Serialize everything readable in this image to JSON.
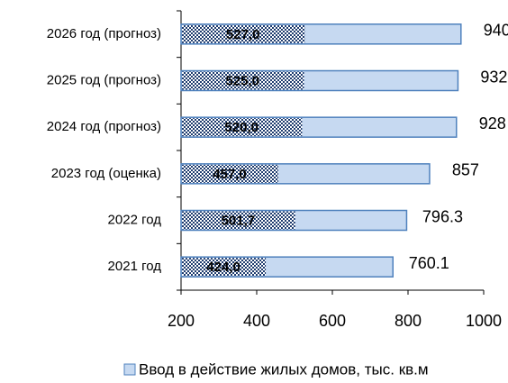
{
  "chart_data": {
    "type": "bar",
    "orientation": "horizontal",
    "categories": [
      "2021 год",
      "2022 год",
      "2023 год (оценка)",
      "2024 год (прогноз)",
      "2025 год (прогноз)",
      "2026 год (прогноз)"
    ],
    "series": [
      {
        "name": "Ввод в действие жилых домов, тыс. кв.м",
        "color": "#c6d9f1",
        "edge": "#4f81bd",
        "values": [
          760.1,
          796.3,
          857,
          928,
          932,
          940
        ]
      },
      {
        "color": "#1f3c6e",
        "pattern": "checker",
        "values": [
          424.0,
          501.7,
          457.0,
          520.0,
          525.0,
          527.0
        ],
        "value_labels": [
          "424,0",
          "501,7",
          "457,0",
          "520,0",
          "525,0",
          "527,0"
        ]
      }
    ],
    "xlim": [
      200,
      1000
    ],
    "xticks": [
      200,
      400,
      600,
      800,
      1000
    ],
    "legend": "bottom"
  }
}
